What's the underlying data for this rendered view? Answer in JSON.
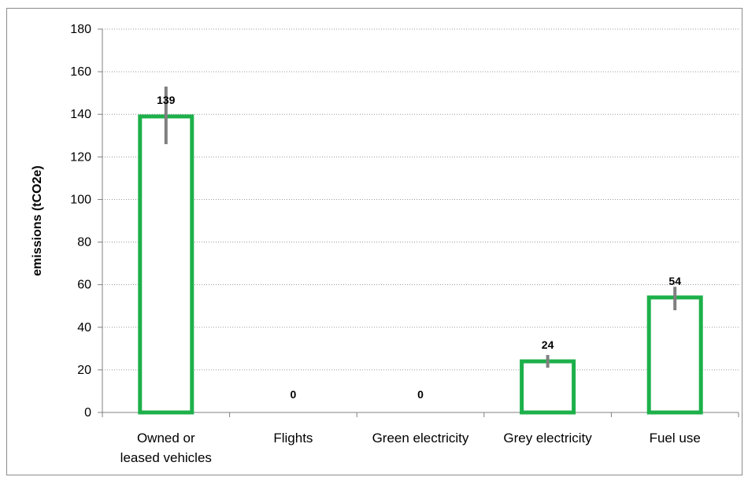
{
  "chart_data": {
    "type": "bar",
    "title": "",
    "xlabel": "",
    "ylabel": "emissions (tCO2e)",
    "ylim": [
      0,
      180
    ],
    "yticks": [
      0,
      20,
      40,
      60,
      80,
      100,
      120,
      140,
      160,
      180
    ],
    "grid": "horizontal dotted",
    "categories": [
      [
        "Owned or",
        "leased vehicles"
      ],
      [
        "Flights"
      ],
      [
        "Green electricity"
      ],
      [
        "Grey electricity"
      ],
      [
        "Fuel use"
      ]
    ],
    "values": [
      139,
      0,
      0,
      24,
      54
    ],
    "data_labels": [
      "139",
      "0",
      "0",
      "24",
      "54"
    ],
    "error_low": [
      126,
      null,
      null,
      21,
      48
    ],
    "error_high": [
      153,
      null,
      null,
      27,
      59
    ],
    "bar_fill": "#ffffff",
    "bar_outline_color": "#1db04a",
    "error_bar_color": "#7f7f7f"
  }
}
